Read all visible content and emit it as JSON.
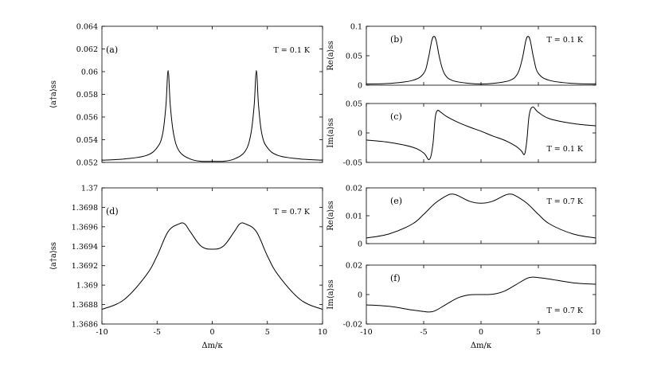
{
  "chart_data": [
    {
      "id": "a",
      "type": "line",
      "panel_label": "(a)",
      "annotation": "T = 0.1 K",
      "ylabel": "⟨a†a⟩ss",
      "xlabel": "",
      "xlim": [
        -10,
        10
      ],
      "ylim": [
        0.052,
        0.064
      ],
      "yticks": [
        "0.052",
        "0.054",
        "0.056",
        "0.058",
        "0.06",
        "0.062",
        "0.064"
      ],
      "xticks": [],
      "series": [
        {
          "x": [
            -10,
            -8,
            -6,
            -5,
            -4.5,
            -4.2,
            -4.0,
            -3.8,
            -3.5,
            -3,
            -2,
            -1,
            0,
            1,
            2,
            3,
            3.5,
            3.8,
            4.0,
            4.2,
            4.5,
            5,
            6,
            8,
            10
          ],
          "y": [
            0.0522,
            0.0523,
            0.0526,
            0.0533,
            0.0545,
            0.057,
            0.0601,
            0.057,
            0.0545,
            0.053,
            0.0523,
            0.0521,
            0.0521,
            0.0521,
            0.0523,
            0.053,
            0.0545,
            0.057,
            0.0601,
            0.057,
            0.0545,
            0.0533,
            0.0526,
            0.0523,
            0.0522
          ]
        }
      ]
    },
    {
      "id": "b",
      "type": "line",
      "panel_label": "(b)",
      "annotation": "T = 0.1 K",
      "ylabel": "Re⟨a⟩ss",
      "xlabel": "",
      "xlim": [
        -10,
        10
      ],
      "ylim": [
        0,
        0.1
      ],
      "yticks": [
        "0",
        "0.05",
        "0.1"
      ],
      "xticks": [],
      "series": [
        {
          "x": [
            -10,
            -8,
            -6,
            -5,
            -4.6,
            -4.3,
            -4.1,
            -3.9,
            -3.6,
            -3.2,
            -2.5,
            -1,
            0,
            1,
            2.5,
            3.2,
            3.6,
            3.9,
            4.1,
            4.3,
            4.6,
            5,
            6,
            8,
            10
          ],
          "y": [
            0.002,
            0.003,
            0.008,
            0.02,
            0.045,
            0.075,
            0.083,
            0.075,
            0.045,
            0.02,
            0.008,
            0.003,
            0.002,
            0.003,
            0.008,
            0.02,
            0.045,
            0.075,
            0.083,
            0.075,
            0.045,
            0.02,
            0.008,
            0.003,
            0.002
          ]
        }
      ]
    },
    {
      "id": "c",
      "type": "line",
      "panel_label": "(c)",
      "annotation": "T = 0.1 K",
      "ylabel": "Im⟨a⟩ss",
      "xlabel": "",
      "xlim": [
        -10,
        10
      ],
      "ylim": [
        -0.05,
        0.05
      ],
      "yticks": [
        "-0.05",
        "0",
        "0.05"
      ],
      "xticks": [],
      "series": [
        {
          "x": [
            -10,
            -8,
            -6,
            -5,
            -4.5,
            -4.2,
            -4.0,
            -3.8,
            -3.5,
            -3,
            -2,
            -1,
            0,
            1,
            2,
            3,
            3.5,
            3.8,
            4.0,
            4.2,
            4.5,
            5,
            6,
            8,
            10
          ],
          "y": [
            -0.012,
            -0.016,
            -0.024,
            -0.034,
            -0.045,
            -0.02,
            0.025,
            0.038,
            0.035,
            0.028,
            0.018,
            0.01,
            0.003,
            -0.005,
            -0.012,
            -0.022,
            -0.03,
            -0.036,
            -0.012,
            0.03,
            0.044,
            0.035,
            0.024,
            0.016,
            0.012
          ]
        }
      ]
    },
    {
      "id": "d",
      "type": "line",
      "panel_label": "(d)",
      "annotation": "T = 0.7 K",
      "ylabel": "⟨a†a⟩ss",
      "xlabel": "Δm/κ",
      "xlim": [
        -10,
        10
      ],
      "ylim": [
        1.3686,
        1.37
      ],
      "yticks": [
        "1.3686",
        "1.3688",
        "1.369",
        "1.3692",
        "1.3694",
        "1.3696",
        "1.3698",
        "1.37"
      ],
      "xticks": [
        "-10",
        "-5",
        "0",
        "5",
        "10"
      ],
      "series": [
        {
          "x": [
            -10,
            -8,
            -6,
            -5,
            -4,
            -3,
            -2.5,
            -2,
            -1,
            0,
            1,
            2,
            2.5,
            3,
            4,
            5,
            6,
            8,
            10
          ],
          "y": [
            1.36875,
            1.36885,
            1.3691,
            1.3693,
            1.36955,
            1.36963,
            1.36963,
            1.36955,
            1.3694,
            1.36937,
            1.3694,
            1.36955,
            1.36963,
            1.36963,
            1.36955,
            1.3693,
            1.3691,
            1.36885,
            1.36875
          ]
        }
      ]
    },
    {
      "id": "e",
      "type": "line",
      "panel_label": "(e)",
      "annotation": "T = 0.7 K",
      "ylabel": "Re⟨a⟩ss",
      "xlabel": "",
      "xlim": [
        -10,
        10
      ],
      "ylim": [
        0,
        0.02
      ],
      "yticks": [
        "0",
        "0.01",
        "0.02"
      ],
      "xticks": [],
      "series": [
        {
          "x": [
            -10,
            -8,
            -6,
            -5,
            -4,
            -3,
            -2.5,
            -2,
            -1,
            0,
            1,
            2,
            2.5,
            3,
            4,
            5,
            6,
            8,
            10
          ],
          "y": [
            0.002,
            0.0035,
            0.007,
            0.0105,
            0.0145,
            0.0172,
            0.0178,
            0.0172,
            0.0152,
            0.0145,
            0.0152,
            0.0172,
            0.0178,
            0.0172,
            0.0145,
            0.0105,
            0.007,
            0.0035,
            0.002
          ]
        }
      ]
    },
    {
      "id": "f",
      "type": "line",
      "panel_label": "(f)",
      "annotation": "T = 0.7 K",
      "ylabel": "Im⟨a⟩ss",
      "xlabel": "Δm/κ",
      "xlim": [
        -10,
        10
      ],
      "ylim": [
        -0.02,
        0.02
      ],
      "yticks": [
        "-0.02",
        "0",
        "0.02"
      ],
      "xticks": [
        "-10",
        "-5",
        "0",
        "5",
        "10"
      ],
      "series": [
        {
          "x": [
            -10,
            -8,
            -6,
            -5,
            -4.5,
            -4,
            -3,
            -2,
            -1,
            0,
            1,
            2,
            3,
            4,
            4.5,
            5,
            6,
            8,
            10
          ],
          "y": [
            -0.007,
            -0.008,
            -0.0105,
            -0.0115,
            -0.0118,
            -0.011,
            -0.0065,
            -0.0022,
            -0.0002,
            0.0,
            0.0002,
            0.0022,
            0.0065,
            0.011,
            0.0118,
            0.0115,
            0.0105,
            0.008,
            0.007
          ]
        }
      ]
    }
  ]
}
